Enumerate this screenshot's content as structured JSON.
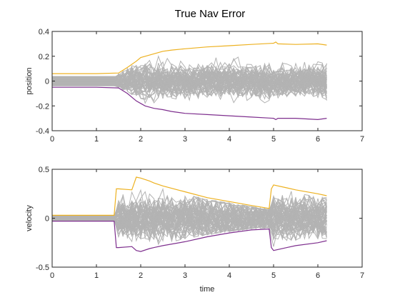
{
  "figure": {
    "title": "True Nav Error"
  },
  "chart_data": [
    {
      "type": "line",
      "ylabel": "position",
      "xlabel": "",
      "xlim": [
        0,
        7
      ],
      "ylim": [
        -0.4,
        0.4
      ],
      "xticks": [
        0,
        1,
        2,
        3,
        4,
        5,
        6,
        7
      ],
      "yticks": [
        -0.4,
        -0.2,
        0,
        0.2,
        0.4
      ],
      "xticklabels": [
        "0",
        "1",
        "2",
        "3",
        "4",
        "5",
        "6",
        "7"
      ],
      "yticklabels": [
        "-0.4",
        "-0.2",
        "0",
        "0.2",
        "0.4"
      ],
      "grid": false,
      "colors": {
        "upper": "#EDB120",
        "lower": "#7E2F8E",
        "runs": "#B3B3B3"
      },
      "bounds": {
        "upper": {
          "x": [
            0,
            0.5,
            1.0,
            1.5,
            1.7,
            1.9,
            2.0,
            2.1,
            2.3,
            2.5,
            2.7,
            3.0,
            3.5,
            4.0,
            4.5,
            5.0,
            5.05,
            5.1,
            5.5,
            6.0,
            6.2
          ],
          "y": [
            0.06,
            0.06,
            0.06,
            0.065,
            0.11,
            0.16,
            0.19,
            0.2,
            0.22,
            0.24,
            0.25,
            0.26,
            0.275,
            0.285,
            0.295,
            0.305,
            0.315,
            0.3,
            0.295,
            0.3,
            0.29
          ]
        },
        "lower": {
          "x": [
            0,
            0.5,
            1.0,
            1.5,
            1.7,
            1.9,
            2.0,
            2.1,
            2.3,
            2.5,
            2.7,
            3.0,
            3.5,
            4.0,
            4.5,
            5.0,
            5.05,
            5.1,
            5.5,
            6.0,
            6.2
          ],
          "y": [
            -0.05,
            -0.05,
            -0.05,
            -0.055,
            -0.1,
            -0.16,
            -0.18,
            -0.2,
            -0.22,
            -0.23,
            -0.245,
            -0.26,
            -0.27,
            -0.28,
            -0.29,
            -0.3,
            -0.31,
            -0.3,
            -0.3,
            -0.31,
            -0.3
          ]
        }
      },
      "runs": {
        "count": 60,
        "x_start": 0,
        "x_end": 6.2,
        "x_step": 0.1,
        "divergence_start": 1.5,
        "initial_spread": 0.04,
        "max_spread": 0.2
      }
    },
    {
      "type": "line",
      "ylabel": "velocity",
      "xlabel": "time",
      "xlim": [
        0,
        7
      ],
      "ylim": [
        -0.5,
        0.5
      ],
      "xticks": [
        0,
        1,
        2,
        3,
        4,
        5,
        6,
        7
      ],
      "yticks": [
        -0.5,
        0,
        0.5
      ],
      "xticklabels": [
        "0",
        "1",
        "2",
        "3",
        "4",
        "5",
        "6",
        "7"
      ],
      "yticklabels": [
        "-0.5",
        "0",
        "0.5"
      ],
      "grid": false,
      "colors": {
        "upper": "#EDB120",
        "lower": "#7E2F8E",
        "runs": "#B3B3B3"
      },
      "bounds": {
        "upper": {
          "x": [
            0,
            0.5,
            1.0,
            1.4,
            1.45,
            1.5,
            1.8,
            1.9,
            2.0,
            2.2,
            2.3,
            2.5,
            3.0,
            3.5,
            4.0,
            4.5,
            4.9,
            4.95,
            5.0,
            5.3,
            5.5,
            6.0,
            6.2
          ],
          "y": [
            0.03,
            0.03,
            0.03,
            0.03,
            0.3,
            0.3,
            0.29,
            0.42,
            0.41,
            0.38,
            0.36,
            0.33,
            0.27,
            0.21,
            0.17,
            0.13,
            0.1,
            0.3,
            0.34,
            0.31,
            0.29,
            0.25,
            0.23
          ]
        },
        "lower": {
          "x": [
            0,
            0.5,
            1.0,
            1.4,
            1.45,
            1.5,
            1.8,
            1.9,
            2.0,
            2.2,
            2.3,
            2.5,
            3.0,
            3.5,
            4.0,
            4.5,
            4.9,
            4.95,
            5.0,
            5.3,
            5.5,
            6.0,
            6.2
          ],
          "y": [
            -0.03,
            -0.03,
            -0.03,
            -0.03,
            -0.3,
            -0.3,
            -0.29,
            -0.33,
            -0.34,
            -0.31,
            -0.3,
            -0.28,
            -0.24,
            -0.19,
            -0.15,
            -0.12,
            -0.11,
            -0.3,
            -0.33,
            -0.3,
            -0.28,
            -0.25,
            -0.23
          ]
        }
      },
      "runs": {
        "count": 60,
        "x_start": 0,
        "x_end": 6.2,
        "x_step": 0.1,
        "divergence_start": 1.45,
        "initial_spread": 0.025,
        "max_spread": 0.35
      }
    }
  ]
}
